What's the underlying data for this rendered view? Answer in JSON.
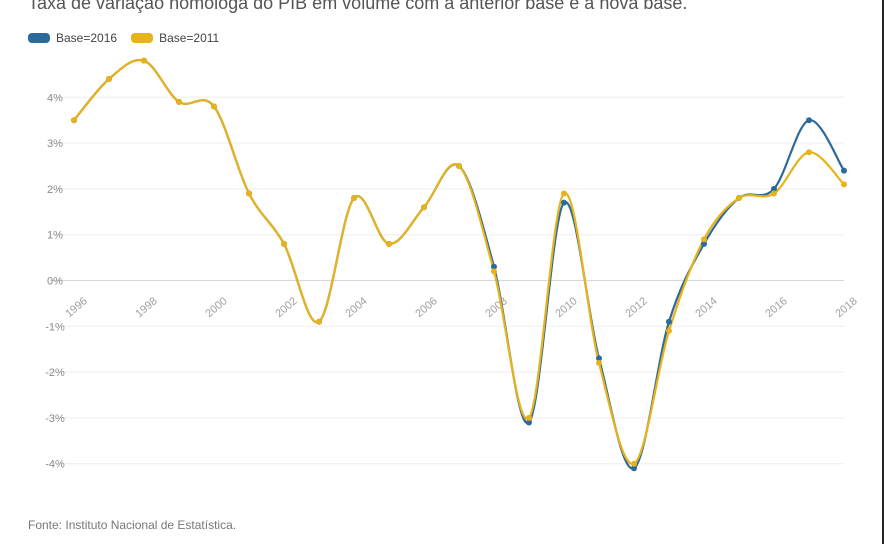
{
  "chart_data": {
    "type": "line",
    "title": "Taxa de variação homóloga do PIB em volume com a anterior base e a nova base.",
    "source": "Fonte: Instituto Nacional de Estatística.",
    "x": [
      1996,
      1997,
      1998,
      1999,
      2000,
      2001,
      2002,
      2003,
      2004,
      2005,
      2006,
      2007,
      2008,
      2009,
      2010,
      2011,
      2012,
      2013,
      2014,
      2015,
      2016,
      2017,
      2018
    ],
    "xticks": [
      "1996",
      "1998",
      "2000",
      "2002",
      "2004",
      "2006",
      "2008",
      "2010",
      "2012",
      "2014",
      "2016",
      "2018"
    ],
    "yticks": [
      "4%",
      "3%",
      "2%",
      "1%",
      "0%",
      "-1%",
      "-2%",
      "-3%",
      "-4%"
    ],
    "ylim": [
      -4.4,
      5.0
    ],
    "grid": true,
    "legend_position": "top-left",
    "series": [
      {
        "name": "Base=2016",
        "color": "#2b6a9a",
        "values": [
          3.5,
          4.4,
          4.8,
          3.9,
          3.8,
          1.9,
          0.8,
          -0.9,
          1.8,
          0.8,
          1.6,
          2.5,
          0.3,
          -3.1,
          1.7,
          -1.7,
          -4.1,
          -0.9,
          0.8,
          1.8,
          2.0,
          3.5,
          2.4
        ]
      },
      {
        "name": "Base=2011",
        "color": "#e8b21a",
        "values": [
          3.5,
          4.4,
          4.8,
          3.9,
          3.8,
          1.9,
          0.8,
          -0.9,
          1.8,
          0.8,
          1.6,
          2.5,
          0.2,
          -3.0,
          1.9,
          -1.8,
          -4.0,
          -1.1,
          0.9,
          1.8,
          1.9,
          2.8,
          2.1
        ]
      }
    ]
  }
}
